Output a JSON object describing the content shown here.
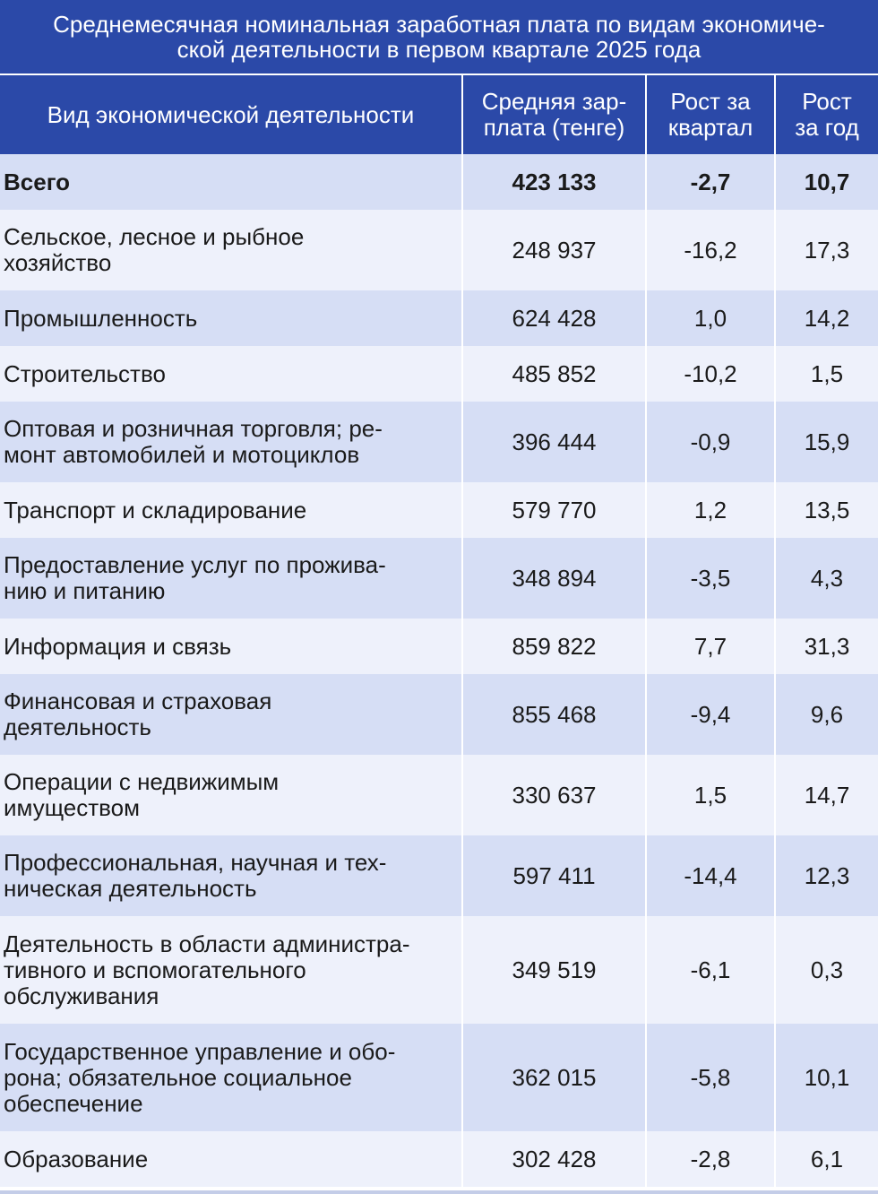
{
  "title": {
    "line1": "Среднемесячная номинальная заработная плата по видам экономиче-",
    "line2": "ской деятельности в первом квартале 2025 года"
  },
  "headers": {
    "activity": "Вид экономической деятельности",
    "salary": [
      "Средняя зар-",
      "плата (тенге)"
    ],
    "quarter": [
      "Рост за",
      "квартал"
    ],
    "year": [
      "Рост",
      "за год"
    ]
  },
  "rows": [
    {
      "activity": [
        "Всего"
      ],
      "salary": "423 133",
      "quarter": "-2,7",
      "year": "10,7"
    },
    {
      "activity": [
        "Сельское, лесное и рыбное",
        "хозяйство"
      ],
      "salary": "248 937",
      "quarter": "-16,2",
      "year": "17,3"
    },
    {
      "activity": [
        "Промышленность"
      ],
      "salary": "624 428",
      "quarter": "1,0",
      "year": "14,2"
    },
    {
      "activity": [
        "Строительство"
      ],
      "salary": "485 852",
      "quarter": "-10,2",
      "year": "1,5"
    },
    {
      "activity": [
        "Оптовая и розничная торговля; ре-",
        "монт автомобилей и мотоциклов"
      ],
      "salary": "396 444",
      "quarter": "-0,9",
      "year": "15,9"
    },
    {
      "activity": [
        "Транспорт и складирование"
      ],
      "salary": "579 770",
      "quarter": "1,2",
      "year": "13,5"
    },
    {
      "activity": [
        "Предоставление услуг по прожива-",
        "нию и питанию"
      ],
      "salary": "348 894",
      "quarter": "-3,5",
      "year": "4,3"
    },
    {
      "activity": [
        "Информация и связь"
      ],
      "salary": "859 822",
      "quarter": "7,7",
      "year": "31,3"
    },
    {
      "activity": [
        "Финансовая и страховая",
        "деятельность"
      ],
      "salary": "855 468",
      "quarter": "-9,4",
      "year": "9,6"
    },
    {
      "activity": [
        "Операции с недвижимым",
        "имуществом"
      ],
      "salary": "330 637",
      "quarter": "1,5",
      "year": "14,7"
    },
    {
      "activity": [
        "Профессиональная, научная и тех-",
        "ническая деятельность"
      ],
      "salary": "597 411",
      "quarter": "-14,4",
      "year": "12,3"
    },
    {
      "activity": [
        "Деятельность в области администра-",
        "тивного и вспомогательного",
        "обслуживания"
      ],
      "salary": "349 519",
      "quarter": "-6,1",
      "year": "0,3"
    },
    {
      "activity": [
        "Государственное управление и обо-",
        "рона; обязательное социальное",
        "обеспечение"
      ],
      "salary": "362 015",
      "quarter": "-5,8",
      "year": "10,1"
    },
    {
      "activity": [
        "Образование"
      ],
      "salary": "302 428",
      "quarter": "-2,8",
      "year": "6,1"
    }
  ]
}
